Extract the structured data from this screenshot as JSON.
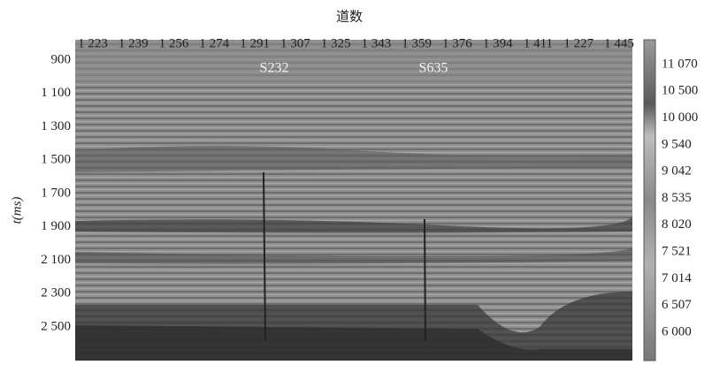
{
  "title": "道数",
  "x_ticks": [
    "1 223",
    "1 239",
    "1 256",
    "1 274",
    "1 291",
    "1 307",
    "1 325",
    "1 343",
    "1 359",
    "1 376",
    "1 394",
    "1 411",
    "1 227",
    "1 445"
  ],
  "y_ticks": [
    "900",
    "1 100",
    "1 300",
    "1 500",
    "1 700",
    "1 900",
    "2 100",
    "2 300",
    "2 500"
  ],
  "y_label": "t(ms)",
  "wells": [
    "S232",
    "S635"
  ],
  "colorbar_ticks": [
    "11 070",
    "10 500",
    "10 000",
    "9 540",
    "9 042",
    "8 535",
    "8 020",
    "7 521",
    "7 014",
    "6 507",
    "6 000"
  ]
}
